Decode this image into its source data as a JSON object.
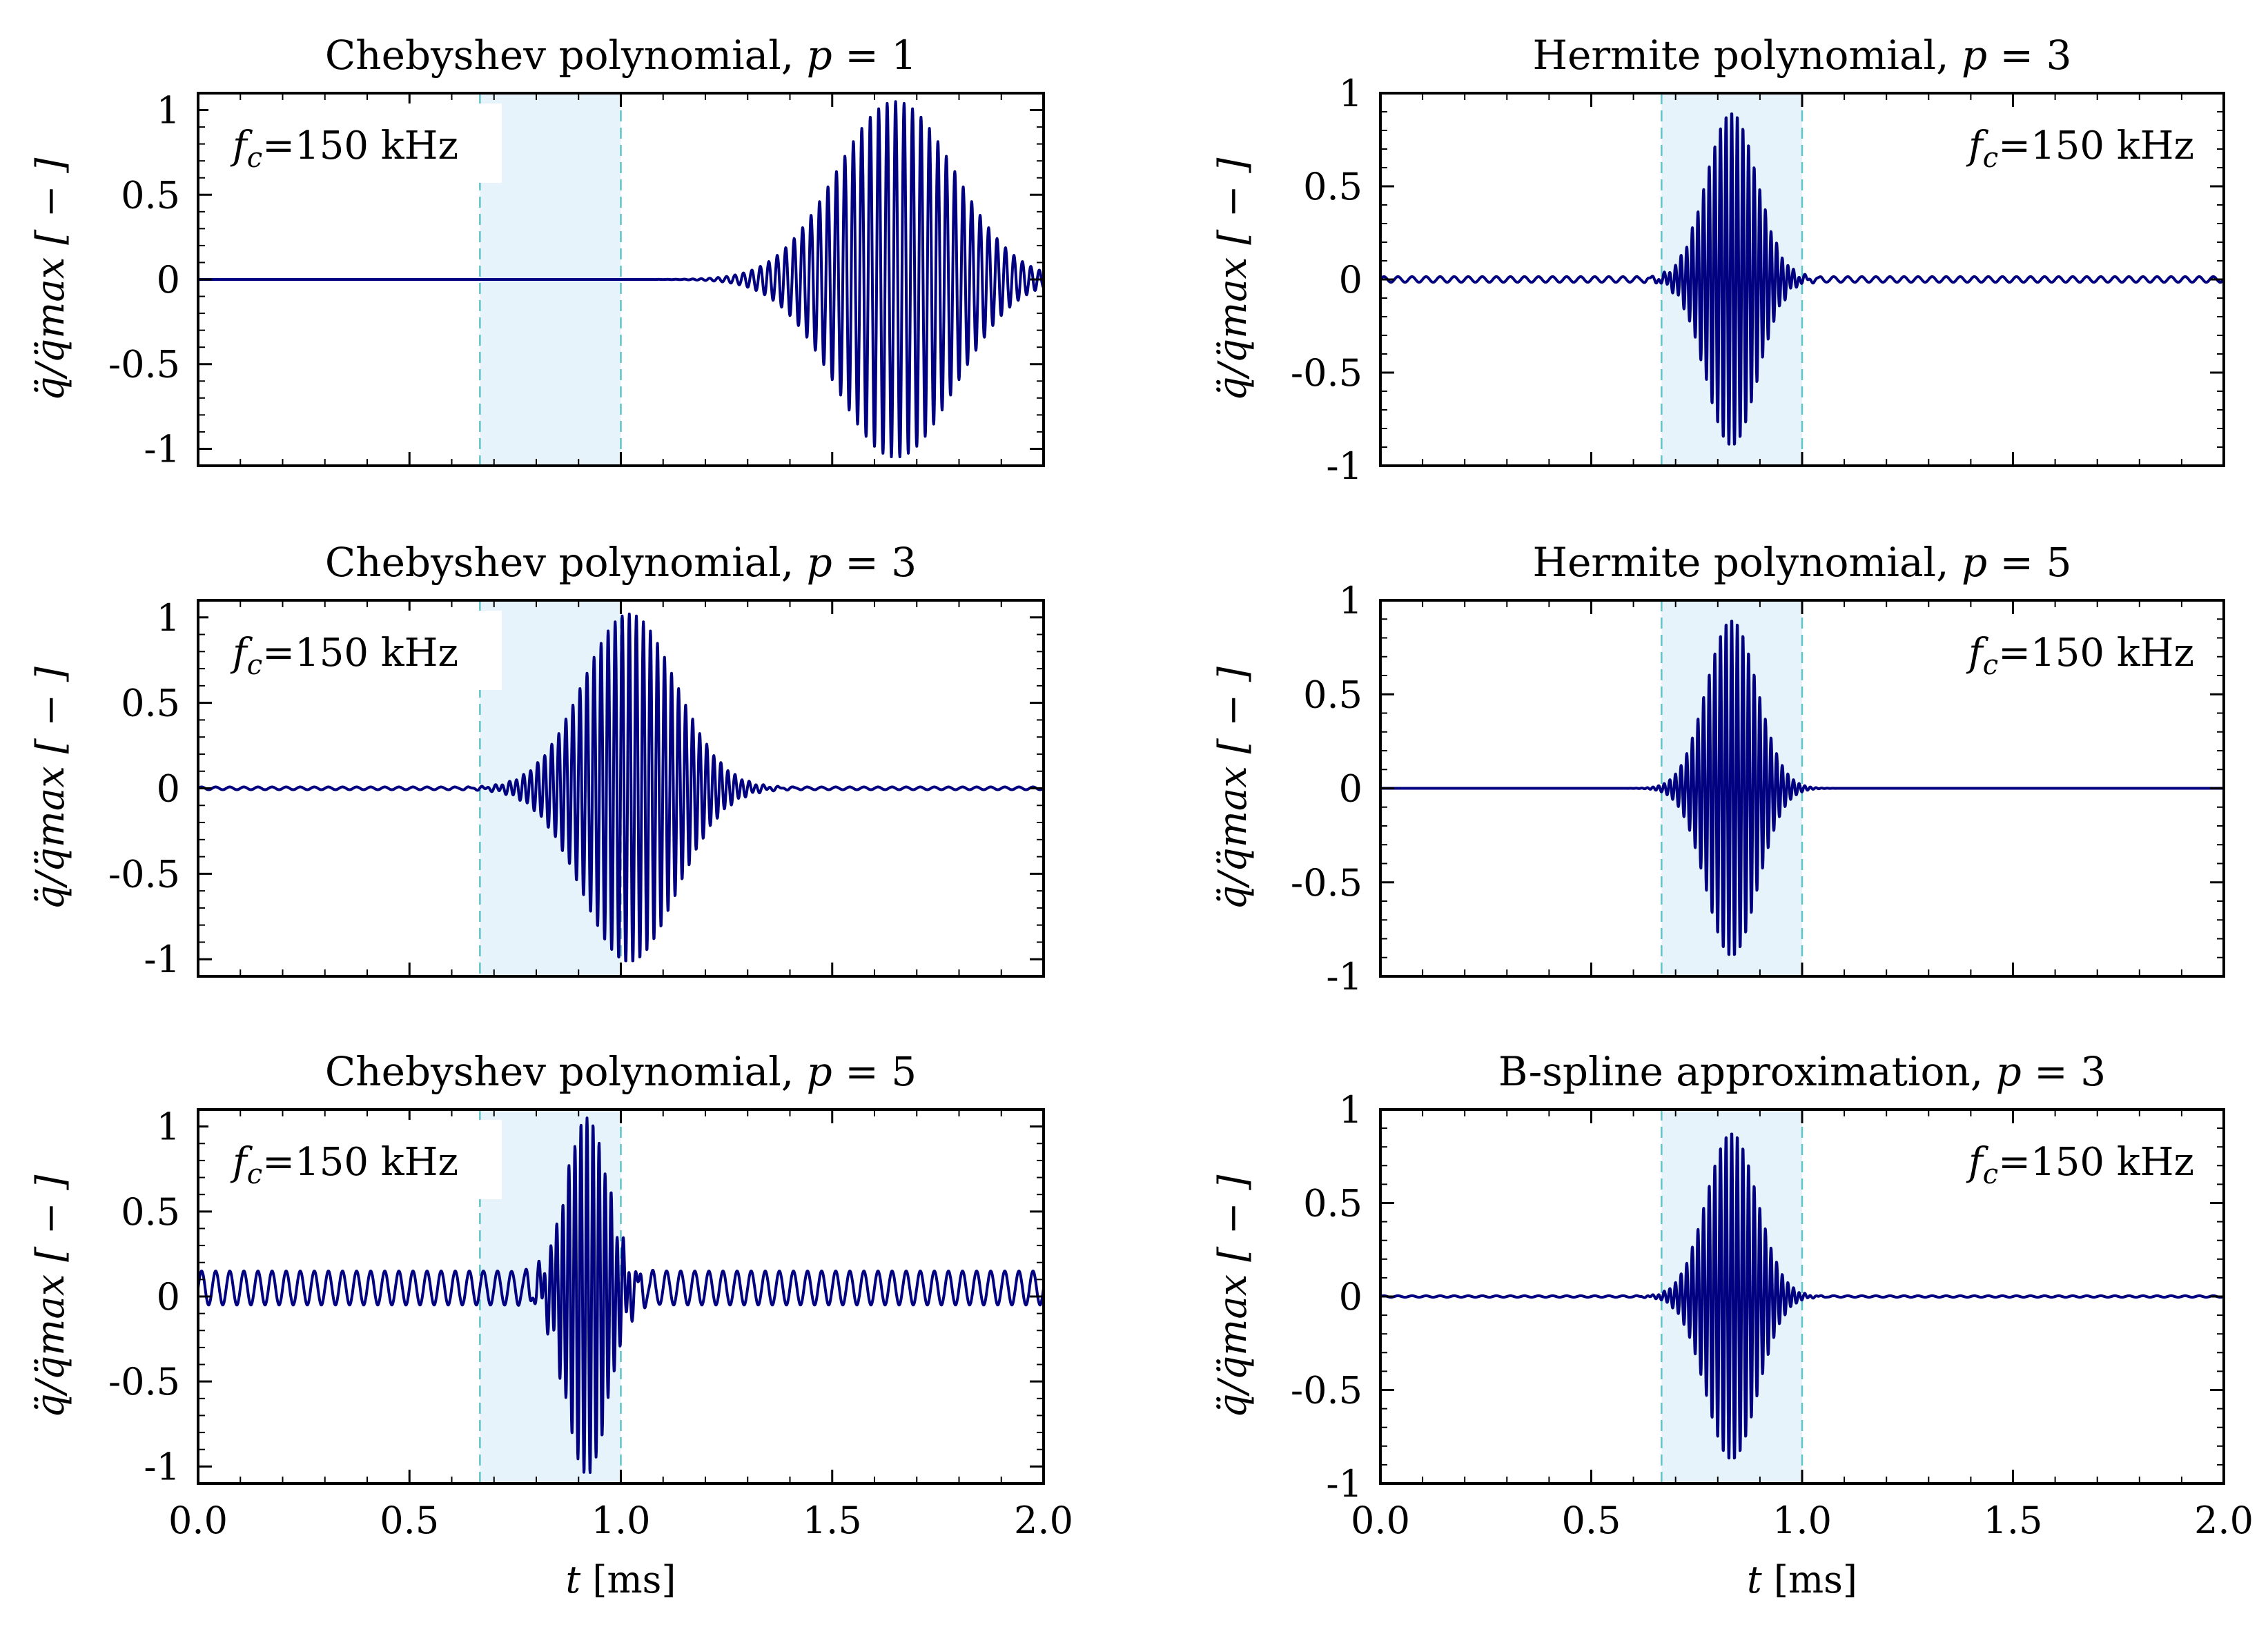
{
  "colors": {
    "signal": "#000080",
    "highlight_fill": "#e6f3fa",
    "highlight_edge": "#5fc4c8",
    "axes": "#000000",
    "annotation_bg": "#ffffff"
  },
  "chart_data": [
    {
      "type": "line",
      "title": "Chebyshev polynomial, p = 1",
      "title_text": "Chebyshev polynomial, ",
      "title_var": "p",
      "title_eq": " = 1",
      "annotation": "fc=150 kHz",
      "annotation_main": "f",
      "annotation_sub": "c",
      "annotation_rest": "=150 kHz",
      "annotation_position": "top-left",
      "ylabel": "q̈/q̈max [ − ]",
      "xlabel": "",
      "xlim": [
        0.0,
        2.0
      ],
      "ylim": [
        -1.1,
        1.1
      ],
      "yticks": [
        -1,
        -0.5,
        0,
        0.5,
        1
      ],
      "ytick_labels": [
        "-1",
        "-0.5",
        "0",
        "0.5",
        "1"
      ],
      "highlight_range": [
        0.6667,
        1.0
      ],
      "signal": {
        "description": "wave packet arriving late, envelope centred near 1.65 ms",
        "center": 1.65,
        "width": 0.14,
        "amplitude": 1.05,
        "freq_khz": 50,
        "baseline_ripple": 0.0
      }
    },
    {
      "type": "line",
      "title": "Hermite polynomial, p = 3",
      "title_text": "Hermite polynomial, ",
      "title_var": "p",
      "title_eq": " = 3",
      "annotation": "fc=150 kHz",
      "annotation_main": "f",
      "annotation_sub": "c",
      "annotation_rest": "=150 kHz",
      "annotation_position": "top-right",
      "ylabel": "q̈/q̈max [ − ]",
      "xlabel": "",
      "xlim": [
        0.0,
        2.0
      ],
      "ylim": [
        -1.0,
        1.0
      ],
      "yticks": [
        -1,
        -0.5,
        0,
        0.5,
        1
      ],
      "ytick_labels": [
        "-1",
        "-0.5",
        "0",
        "0.5",
        "1"
      ],
      "highlight_range": [
        0.6667,
        1.0
      ],
      "signal": {
        "description": "wave packet inside highlighted window, centred near 0.83 ms",
        "center": 0.833,
        "width": 0.06,
        "amplitude": 0.9,
        "freq_khz": 75,
        "baseline_ripple": 0.015
      }
    },
    {
      "type": "line",
      "title": "Chebyshev polynomial, p = 3",
      "title_text": "Chebyshev polynomial, ",
      "title_var": "p",
      "title_eq": " = 3",
      "annotation": "fc=150 kHz",
      "annotation_main": "f",
      "annotation_sub": "c",
      "annotation_rest": "=150 kHz",
      "annotation_position": "top-left",
      "ylabel": "q̈/q̈max [ − ]",
      "xlabel": "",
      "xlim": [
        0.0,
        2.0
      ],
      "ylim": [
        -1.1,
        1.1
      ],
      "yticks": [
        -1,
        -0.5,
        0,
        0.5,
        1
      ],
      "ytick_labels": [
        "-1",
        "-0.5",
        "0",
        "0.5",
        "1"
      ],
      "highlight_range": [
        0.6667,
        1.0
      ],
      "signal": {
        "description": "wave packet centred near 1.02 ms with slow decay",
        "center": 1.02,
        "width": 0.11,
        "amplitude": 1.02,
        "freq_khz": 60,
        "baseline_ripple": 0.008
      }
    },
    {
      "type": "line",
      "title": "Hermite polynomial, p = 5",
      "title_text": "Hermite polynomial, ",
      "title_var": "p",
      "title_eq": " = 5",
      "annotation": "fc=150 kHz",
      "annotation_main": "f",
      "annotation_sub": "c",
      "annotation_rest": "=150 kHz",
      "annotation_position": "top-right",
      "ylabel": "q̈/q̈max [ − ]",
      "xlabel": "",
      "xlim": [
        0.0,
        2.0
      ],
      "ylim": [
        -1.0,
        1.0
      ],
      "yticks": [
        -1,
        -0.5,
        0,
        0.5,
        1
      ],
      "ytick_labels": [
        "-1",
        "-0.5",
        "0",
        "0.5",
        "1"
      ],
      "highlight_range": [
        0.6667,
        1.0
      ],
      "signal": {
        "description": "wave packet inside highlighted window, centred near 0.83 ms",
        "center": 0.833,
        "width": 0.06,
        "amplitude": 0.9,
        "freq_khz": 75,
        "baseline_ripple": 0.0
      }
    },
    {
      "type": "line",
      "title": "Chebyshev polynomial, p = 5",
      "title_text": "Chebyshev polynomial, ",
      "title_var": "p",
      "title_eq": " = 5",
      "annotation": "fc=150 kHz",
      "annotation_main": "f",
      "annotation_sub": "c",
      "annotation_rest": "=150 kHz",
      "annotation_position": "top-left",
      "ylabel": "q̈/q̈max [ − ]",
      "xlabel": "t [ms]",
      "xlabel_var": "t",
      "xlabel_unit": " [ms]",
      "xlim": [
        0.0,
        2.0
      ],
      "ylim": [
        -1.1,
        1.1
      ],
      "yticks": [
        -1,
        -0.5,
        0,
        0.5,
        1
      ],
      "ytick_labels": [
        "-1",
        "-0.5",
        "0",
        "0.5",
        "1"
      ],
      "xticks": [
        0.0,
        0.5,
        1.0,
        1.5,
        2.0
      ],
      "xtick_labels": [
        "0.0",
        "0.5",
        "1.0",
        "1.5",
        "2.0"
      ],
      "highlight_range": [
        0.6667,
        1.0
      ],
      "signal": {
        "description": "wave packet centred near 0.92 ms on top of persistent oscillation",
        "center": 0.92,
        "width": 0.05,
        "amplitude": 1.05,
        "freq_khz": 70,
        "baseline_ripple": 0.1,
        "baseline_offset": 0.05
      }
    },
    {
      "type": "line",
      "title": "B-spline approximation, p = 3",
      "title_text": "B-spline approximation, ",
      "title_var": "p",
      "title_eq": " = 3",
      "annotation": "fc=150 kHz",
      "annotation_main": "f",
      "annotation_sub": "c",
      "annotation_rest": "=150 kHz",
      "annotation_position": "top-right",
      "ylabel": "q̈/q̈max [ − ]",
      "xlabel": "t [ms]",
      "xlabel_var": "t",
      "xlabel_unit": " [ms]",
      "xlim": [
        0.0,
        2.0
      ],
      "ylim": [
        -1.0,
        1.0
      ],
      "yticks": [
        -1,
        -0.5,
        0,
        0.5,
        1
      ],
      "ytick_labels": [
        "-1",
        "-0.5",
        "0",
        "0.5",
        "1"
      ],
      "xticks": [
        0.0,
        0.5,
        1.0,
        1.5,
        2.0
      ],
      "xtick_labels": [
        "0.0",
        "0.5",
        "1.0",
        "1.5",
        "2.0"
      ],
      "highlight_range": [
        0.6667,
        1.0
      ],
      "signal": {
        "description": "wave packet inside highlighted window, centred near 0.83 ms",
        "center": 0.833,
        "width": 0.06,
        "amplitude": 0.88,
        "freq_khz": 75,
        "baseline_ripple": 0.004
      }
    }
  ]
}
